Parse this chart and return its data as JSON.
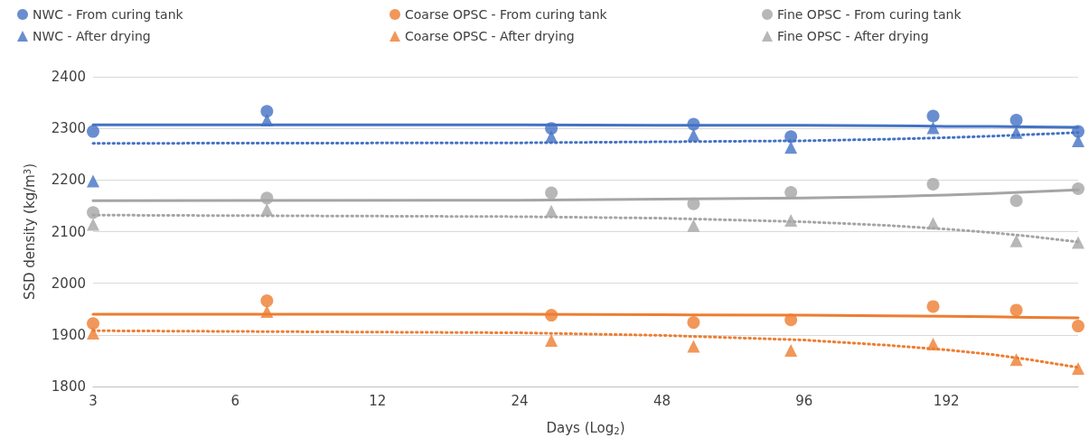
{
  "chart_data": {
    "type": "scatter",
    "xlabel": "Days (Log$_{2}$)",
    "ylabel": "SSD density (kg/m$^{3}$)",
    "log": "x",
    "xlim": [
      3,
      365
    ],
    "xticks": [
      3,
      6,
      12,
      24,
      48,
      96,
      192
    ],
    "ylim": [
      1800,
      2400
    ],
    "yticks": [
      1800,
      1900,
      2000,
      2100,
      2200,
      2300,
      2400
    ],
    "grid": "y",
    "legend": "top",
    "x": [
      3,
      7,
      28,
      56,
      90,
      180,
      270,
      365
    ],
    "series": [
      {
        "name": "NWC - From curing tank",
        "color": "#4472c4",
        "marker": "circle",
        "values": [
          2294,
          2333,
          2300,
          2308,
          2284,
          2324,
          2316,
          2294
        ]
      },
      {
        "name": "NWC - After drying",
        "color": "#4472c4",
        "marker": "triangle",
        "values": [
          2198,
          2316,
          2284,
          2287,
          2263,
          2301,
          2292,
          2276
        ]
      },
      {
        "name": "Coarse OPSC - From curing tank",
        "color": "#ed7d31",
        "marker": "circle",
        "values": [
          1922,
          1966,
          1938,
          1924,
          1929,
          1955,
          1948,
          1917
        ]
      },
      {
        "name": "Coarse OPSC - After drying",
        "color": "#ed7d31",
        "marker": "triangle",
        "values": [
          1903,
          1945,
          1889,
          1878,
          1870,
          1882,
          1852,
          1835
        ]
      },
      {
        "name": "Fine OPSC - From curing tank",
        "color": "#a5a5a5",
        "marker": "circle",
        "values": [
          2137,
          2165,
          2175,
          2154,
          2176,
          2192,
          2160,
          2183
        ]
      },
      {
        "name": "Fine OPSC - After drying",
        "color": "#a5a5a5",
        "marker": "triangle",
        "values": [
          2114,
          2143,
          2140,
          2112,
          2122,
          2116,
          2082,
          2079
        ]
      },
      {
        "type": "line",
        "color": "#4472c4",
        "line_style": "solid",
        "marker": "none",
        "x": [
          3,
          24,
          48,
          96,
          144,
          192,
          240,
          288,
          365
        ],
        "values": [
          2307,
          2307,
          2306,
          2306,
          2305,
          2304,
          2304,
          2303,
          2302
        ]
      },
      {
        "type": "line",
        "color": "#4472c4",
        "line_style": "dotted",
        "marker": "none",
        "x": [
          3,
          24,
          48,
          96,
          144,
          192,
          240,
          288,
          365
        ],
        "values": [
          2271,
          2272,
          2274,
          2276,
          2279,
          2282,
          2285,
          2288,
          2292
        ]
      },
      {
        "type": "line",
        "color": "#ed7d31",
        "line_style": "solid",
        "marker": "none",
        "x": [
          3,
          24,
          48,
          96,
          144,
          192,
          240,
          288,
          365
        ],
        "values": [
          1940,
          1940,
          1939,
          1938,
          1937,
          1936,
          1935,
          1934,
          1933
        ]
      },
      {
        "type": "line",
        "color": "#ed7d31",
        "line_style": "dotted",
        "marker": "none",
        "x": [
          3,
          24,
          48,
          96,
          144,
          192,
          240,
          288,
          365
        ],
        "values": [
          1908,
          1904,
          1899,
          1890,
          1880,
          1871,
          1862,
          1852,
          1837
        ]
      },
      {
        "type": "line",
        "color": "#a5a5a5",
        "line_style": "solid",
        "marker": "none",
        "x": [
          3,
          24,
          48,
          96,
          144,
          192,
          240,
          288,
          365
        ],
        "values": [
          2160,
          2161,
          2163,
          2165,
          2168,
          2171,
          2174,
          2177,
          2181
        ]
      },
      {
        "type": "line",
        "color": "#a5a5a5",
        "line_style": "dotted",
        "marker": "none",
        "x": [
          3,
          24,
          48,
          96,
          144,
          192,
          240,
          288,
          365
        ],
        "values": [
          2132,
          2129,
          2126,
          2119,
          2112,
          2105,
          2098,
          2091,
          2080
        ]
      }
    ]
  }
}
